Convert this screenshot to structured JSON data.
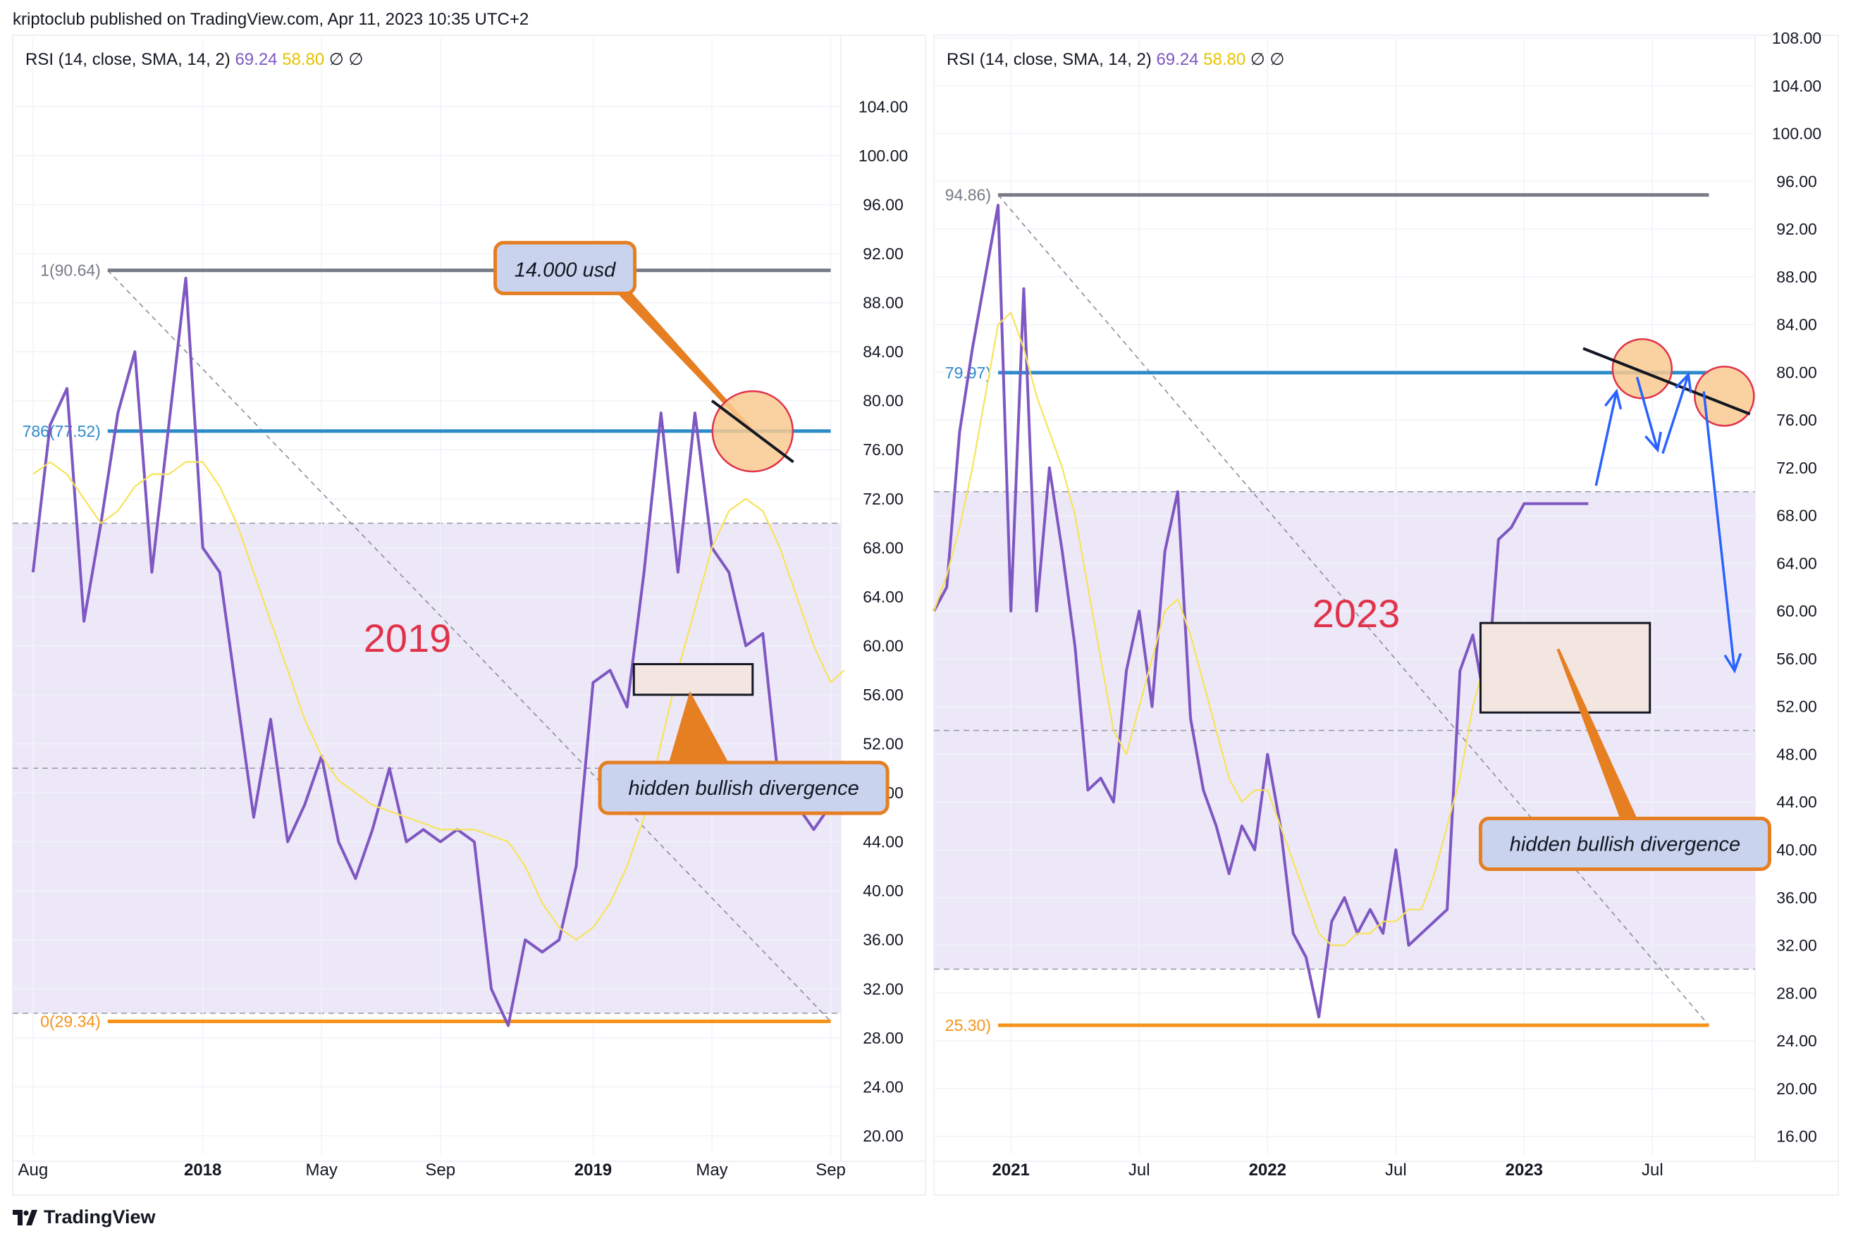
{
  "header": {
    "attribution": "kriptoclub published on TradingView.com, Apr 11, 2023 10:35 UTC+2"
  },
  "footer": {
    "brand": "TradingView"
  },
  "colors": {
    "rsi_line": "#7e57c2",
    "sma_line": "#f7e35a",
    "fib_top": "#787b86",
    "fib_786": "#2e8bc9",
    "fib_zero": "#f7931a",
    "band_fill": "#ede8f8",
    "annotation_orange": "#e67e22",
    "annotation_fill": "#c9d3ee",
    "circle_fill": "#f9c98f",
    "circle_stroke": "#e0334a",
    "year_text": "#e0334a",
    "arrow_blue": "#2962ff"
  },
  "chart_data": [
    {
      "type": "line",
      "indicator_label": {
        "name": "RSI (14, close, SMA, 14, 2)",
        "rsi_value": "69.24",
        "sma_value": "58.80",
        "icons": [
          "∅",
          "∅"
        ]
      },
      "year_label": "2019",
      "x_tick_labels": [
        "Aug",
        "2018",
        "May",
        "Sep",
        "2019",
        "May",
        "Sep"
      ],
      "x_tick_positions": [
        0.0,
        5.0,
        8.5,
        12.0,
        16.5,
        20.0,
        23.5
      ],
      "x_range": [
        -0.6,
        23.8
      ],
      "y_tick_labels": [
        "104.00",
        "100.00",
        "96.00",
        "92.00",
        "88.00",
        "84.00",
        "80.00",
        "76.00",
        "72.00",
        "68.00",
        "64.00",
        "60.00",
        "56.00",
        "52.00",
        "48.00",
        "44.00",
        "40.00",
        "36.00",
        "32.00",
        "28.00",
        "24.00",
        "20.00"
      ],
      "ylim": [
        18.5,
        109.6
      ],
      "band": {
        "from": 30,
        "to": 70
      },
      "midline": 50,
      "fib_levels": [
        {
          "label": "1(90.64)",
          "value": 90.64,
          "x_start": 2.2,
          "x_end": 23.5,
          "role": "top"
        },
        {
          "label": "786(77.52)",
          "value": 77.52,
          "x_start": 2.2,
          "x_end": 23.5,
          "role": "786"
        },
        {
          "label": "0(29.34)",
          "value": 29.34,
          "x_start": 2.2,
          "x_end": 23.5,
          "role": "zero"
        }
      ],
      "trend_dashed": {
        "from": [
          2.2,
          90.64
        ],
        "to": [
          23.5,
          29.34
        ]
      },
      "series": [
        {
          "name": "RSI",
          "role": "rsi",
          "x": [
            0,
            0.5,
            1,
            1.5,
            2,
            2.5,
            3,
            3.5,
            4,
            4.5,
            5,
            5.5,
            6,
            6.5,
            7,
            7.5,
            8,
            8.5,
            9,
            9.5,
            10,
            10.5,
            11,
            11.5,
            12,
            12.5,
            13,
            13.5,
            14,
            14.5,
            15,
            15.5,
            16,
            16.5,
            17,
            17.5,
            18,
            18.5,
            19,
            19.5,
            20,
            20.5,
            21,
            21.5,
            22,
            22.5,
            23,
            23.5,
            23.9
          ],
          "y": [
            66,
            78,
            81,
            62,
            70,
            79,
            84,
            66,
            78,
            90,
            68,
            66,
            56,
            46,
            54,
            44,
            47,
            51,
            44,
            41,
            45,
            50,
            44,
            45,
            44,
            45,
            44,
            32,
            29,
            36,
            35,
            36,
            42,
            57,
            58,
            55,
            66,
            79,
            66,
            79,
            68,
            66,
            60,
            61,
            48,
            47,
            45,
            47,
            48
          ]
        },
        {
          "name": "SMA",
          "role": "sma",
          "x": [
            0,
            0.5,
            1,
            1.5,
            2,
            2.5,
            3,
            3.5,
            4,
            4.5,
            5,
            5.5,
            6,
            6.5,
            7,
            7.5,
            8,
            8.5,
            9,
            9.5,
            10,
            10.5,
            11,
            11.5,
            12,
            12.5,
            13,
            13.5,
            14,
            14.5,
            15,
            15.5,
            16,
            16.5,
            17,
            17.5,
            18,
            18.5,
            19,
            19.5,
            20,
            20.5,
            21,
            21.5,
            22,
            22.5,
            23,
            23.5,
            23.9
          ],
          "y": [
            74,
            75,
            74,
            72,
            70,
            71,
            73,
            74,
            74,
            75,
            75,
            73,
            70,
            66,
            62,
            58,
            54,
            51,
            49,
            48,
            47,
            46.5,
            46,
            45.5,
            45,
            45,
            45,
            44.5,
            44,
            42,
            39,
            37,
            36,
            37,
            39,
            42,
            46,
            52,
            58,
            63,
            68,
            71,
            72,
            71,
            68,
            64,
            60,
            57,
            58
          ]
        }
      ],
      "annotations": {
        "price_box": {
          "text": "14.000 usd",
          "x": 15.9,
          "y": 90.6
        },
        "divergence_box": {
          "text": "hidden bullish divergence",
          "x": 16.7,
          "y": 48.4
        },
        "rect": {
          "x0": 17.7,
          "x1": 21.2,
          "y0": 56,
          "y1": 58.5
        },
        "circle": {
          "x": 21.2,
          "y": 77.5
        },
        "black_line": {
          "from": [
            20.0,
            80
          ],
          "to": [
            22.4,
            75
          ]
        }
      }
    },
    {
      "type": "line",
      "indicator_label": {
        "name": "RSI (14, close, SMA, 14, 2)",
        "rsi_value": "69.24",
        "sma_value": "58.80",
        "icons": [
          "∅",
          "∅"
        ]
      },
      "year_label": "2023",
      "x_tick_labels": [
        "2021",
        "Jul",
        "2022",
        "Jul",
        "2023",
        "Jul"
      ],
      "x_tick_positions": [
        3.0,
        8.0,
        13.0,
        18.0,
        23.0,
        28.0
      ],
      "x_range": [
        0,
        32.0
      ],
      "y_tick_labels": [
        "108.00",
        "104.00",
        "100.00",
        "96.00",
        "92.00",
        "88.00",
        "84.00",
        "80.00",
        "76.00",
        "72.00",
        "68.00",
        "64.00",
        "60.00",
        "56.00",
        "52.00",
        "48.00",
        "44.00",
        "40.00",
        "36.00",
        "32.00",
        "28.00",
        "24.00",
        "20.00",
        "16.00"
      ],
      "ylim": [
        14.5,
        108.0
      ],
      "band": {
        "from": 30,
        "to": 70
      },
      "midline": 50,
      "fib_levels": [
        {
          "label": "94.86)",
          "value": 94.86,
          "x_start": 2.5,
          "x_end": 30.2,
          "role": "top"
        },
        {
          "label": "79.97)",
          "value": 79.97,
          "x_start": 2.5,
          "x_end": 30.2,
          "role": "786"
        },
        {
          "label": "25.30)",
          "value": 25.3,
          "x_start": 2.5,
          "x_end": 30.2,
          "role": "zero"
        }
      ],
      "trend_dashed": {
        "from": [
          2.5,
          94.86
        ],
        "to": [
          30.2,
          25.3
        ]
      },
      "series": [
        {
          "name": "RSI",
          "role": "rsi",
          "x": [
            0,
            0.5,
            1,
            1.5,
            2,
            2.5,
            3,
            3.5,
            4,
            4.5,
            5,
            5.5,
            6,
            6.5,
            7,
            7.5,
            8,
            8.5,
            9,
            9.5,
            10,
            10.5,
            11,
            11.5,
            12,
            12.5,
            13,
            13.5,
            14,
            14.5,
            15,
            15.5,
            16,
            16.5,
            17,
            17.5,
            18,
            18.5,
            19,
            19.5,
            20,
            20.5,
            21,
            21.5,
            22,
            22.5,
            23,
            23.5,
            24,
            24.5,
            25,
            25.5
          ],
          "y": [
            60,
            62,
            75,
            82,
            88,
            94,
            60,
            87,
            60,
            72,
            65,
            57,
            45,
            46,
            44,
            55,
            60,
            52,
            65,
            70,
            51,
            45,
            42,
            38,
            42,
            40,
            48,
            42,
            33,
            31,
            26,
            34,
            36,
            33,
            35,
            33,
            40,
            32,
            33,
            34,
            35,
            55,
            58,
            52,
            66,
            67,
            69,
            69,
            69,
            69,
            69,
            69
          ]
        },
        {
          "name": "SMA",
          "role": "sma",
          "x": [
            0,
            0.5,
            1,
            1.5,
            2,
            2.5,
            3,
            3.5,
            4,
            4.5,
            5,
            5.5,
            6,
            6.5,
            7,
            7.5,
            8,
            8.5,
            9,
            9.5,
            10,
            10.5,
            11,
            11.5,
            12,
            12.5,
            13,
            13.5,
            14,
            14.5,
            15,
            15.5,
            16,
            16.5,
            17,
            17.5,
            18,
            18.5,
            19,
            19.5,
            20,
            20.5,
            21,
            21.5,
            22,
            22.5,
            23,
            23.5,
            24,
            24.5
          ],
          "y": [
            60,
            63,
            67,
            72,
            78,
            84,
            85,
            82,
            78,
            75,
            72,
            68,
            62,
            56,
            50,
            48,
            52,
            56,
            60,
            61,
            58,
            54,
            50,
            46,
            44,
            45,
            45,
            42,
            39,
            36,
            33,
            32,
            32,
            33,
            33,
            34,
            34,
            35,
            35,
            38,
            42,
            46,
            52,
            56,
            58,
            58.8,
            58.8,
            58.8,
            58.8,
            58.8
          ]
        }
      ],
      "annotations": {
        "divergence_box": {
          "text": "hidden bullish divergence",
          "x": 21.3,
          "y": 40.5
        },
        "rect": {
          "x0": 21.3,
          "x1": 27.9,
          "y0": 51.5,
          "y1": 59
        },
        "circles": [
          {
            "x": 27.6,
            "y": 80.3
          },
          {
            "x": 30.8,
            "y": 78.0
          }
        ],
        "black_line": {
          "from": [
            25.3,
            82
          ],
          "to": [
            31.8,
            76.5
          ]
        },
        "blue_arrows": [
          [
            [
              25.8,
              70.5
            ],
            [
              26.6,
              78.4
            ]
          ],
          [
            [
              27.4,
              79.6
            ],
            [
              28.2,
              73.5
            ]
          ],
          [
            [
              28.4,
              73.2
            ],
            [
              29.4,
              79.8
            ]
          ],
          [
            [
              30.0,
              78.4
            ],
            [
              31.2,
              55
            ]
          ]
        ]
      }
    }
  ]
}
